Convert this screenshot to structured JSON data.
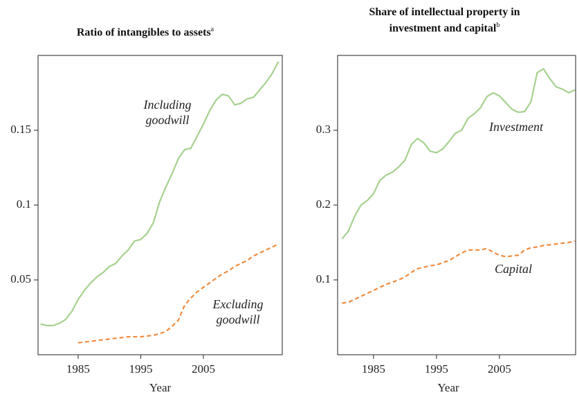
{
  "chart_data": [
    {
      "type": "line",
      "title": "Ratio of intangibles to assets",
      "title_note": "a",
      "x_label": "Year",
      "x": [
        1979,
        1980,
        1981,
        1982,
        1983,
        1984,
        1985,
        1986,
        1987,
        1988,
        1989,
        1990,
        1991,
        1992,
        1993,
        1994,
        1995,
        1996,
        1997,
        1998,
        1999,
        2000,
        2001,
        2002,
        2003,
        2004,
        2005,
        2006,
        2007,
        2008,
        2009,
        2010,
        2011,
        2012,
        2013,
        2014,
        2015,
        2016,
        2017
      ],
      "xlim": [
        1978.6,
        2017.6
      ],
      "xticks": [
        1985,
        1995,
        2005
      ],
      "ylim": [
        0,
        0.2
      ],
      "yticks": [
        0.05,
        0.1,
        0.15
      ],
      "series": [
        {
          "name": "Including goodwill",
          "color": "#a5d18e",
          "linestyle": "solid",
          "values": [
            0.0205,
            0.0195,
            0.0195,
            0.021,
            0.0235,
            0.029,
            0.037,
            0.043,
            0.048,
            0.052,
            0.055,
            0.059,
            0.061,
            0.066,
            0.07,
            0.076,
            0.077,
            0.081,
            0.088,
            0.102,
            0.112,
            0.121,
            0.131,
            0.137,
            0.138,
            0.146,
            0.154,
            0.163,
            0.17,
            0.174,
            0.173,
            0.167,
            0.168,
            0.171,
            0.172,
            0.177,
            0.182,
            0.188,
            0.196
          ]
        },
        {
          "name": "Excluding goodwill",
          "color": "#ef8a3e",
          "linestyle": "dashed",
          "values": [
            null,
            null,
            null,
            null,
            null,
            null,
            0.008,
            0.0085,
            0.009,
            0.0095,
            0.01,
            0.0105,
            0.011,
            0.0115,
            0.012,
            0.012,
            0.012,
            0.0125,
            0.013,
            0.014,
            0.0155,
            0.019,
            0.023,
            0.033,
            0.038,
            0.042,
            0.045,
            0.048,
            0.051,
            0.054,
            0.056,
            0.059,
            0.061,
            0.063,
            0.066,
            0.068,
            0.07,
            0.072,
            0.074
          ]
        }
      ]
    },
    {
      "type": "line",
      "title": "Share of intellectual property in investment and capital",
      "title_note": "b",
      "x_label": "Year",
      "x": [
        1980,
        1981,
        1982,
        1983,
        1984,
        1985,
        1986,
        1987,
        1988,
        1989,
        1990,
        1991,
        1992,
        1993,
        1994,
        1995,
        1996,
        1997,
        1998,
        1999,
        2000,
        2001,
        2002,
        2003,
        2004,
        2005,
        2006,
        2007,
        2008,
        2009,
        2010,
        2011,
        2012,
        2013,
        2014,
        2015,
        2016,
        2017
      ],
      "xlim": [
        1979.3,
        2017.1
      ],
      "xticks": [
        1985,
        1995,
        2005
      ],
      "ylim": [
        0,
        0.4
      ],
      "yticks": [
        0.1,
        0.2,
        0.3
      ],
      "series": [
        {
          "name": "Investment",
          "color": "#a5d18e",
          "linestyle": "solid",
          "values": [
            0.155,
            0.165,
            0.185,
            0.2,
            0.206,
            0.215,
            0.233,
            0.24,
            0.244,
            0.251,
            0.26,
            0.281,
            0.289,
            0.283,
            0.272,
            0.27,
            0.275,
            0.285,
            0.296,
            0.3,
            0.316,
            0.322,
            0.33,
            0.345,
            0.35,
            0.346,
            0.337,
            0.328,
            0.324,
            0.325,
            0.338,
            0.377,
            0.382,
            0.369,
            0.358,
            0.355,
            0.35,
            0.354
          ]
        },
        {
          "name": "Capital",
          "color": "#ef8a3e",
          "linestyle": "dashed",
          "values": [
            0.069,
            0.07,
            0.074,
            0.078,
            0.082,
            0.086,
            0.09,
            0.094,
            0.097,
            0.1,
            0.104,
            0.11,
            0.115,
            0.117,
            0.119,
            0.12,
            0.123,
            0.126,
            0.131,
            0.136,
            0.14,
            0.14,
            0.14,
            0.142,
            0.137,
            0.133,
            0.131,
            0.132,
            0.133,
            0.14,
            0.143,
            0.144,
            0.146,
            0.147,
            0.148,
            0.149,
            0.15,
            0.152
          ]
        }
      ]
    }
  ]
}
